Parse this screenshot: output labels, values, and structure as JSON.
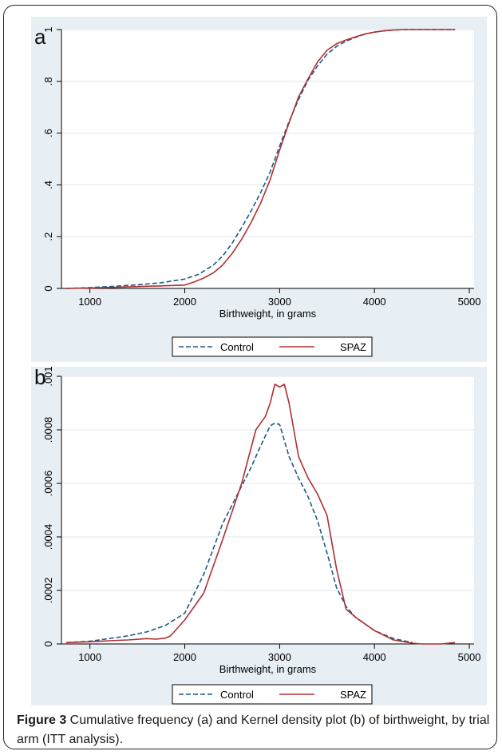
{
  "figure": {
    "caption_label": "Figure 3",
    "caption_text": " Cumulative frequency (a) and Kernel density plot (b) of birthweight, by trial arm (ITT analysis)."
  },
  "colors": {
    "control": "#1f5a87",
    "spaz": "#b03030",
    "panel_bg": "#e8eff4",
    "plot_bg": "#ffffff"
  },
  "chart_data": [
    {
      "type": "line",
      "panel_label": "a",
      "title": "",
      "xlabel": "Birthweight, in grams",
      "ylabel": "",
      "xlim": [
        700,
        5050
      ],
      "ylim": [
        0,
        1
      ],
      "xticks": [
        1000,
        2000,
        3000,
        4000,
        5000
      ],
      "xtick_labels": [
        "1000",
        "2000",
        "3000",
        "4000",
        "5000"
      ],
      "yticks": [
        0,
        0.2,
        0.4,
        0.6,
        0.8,
        1
      ],
      "ytick_labels": [
        "0",
        ".2",
        ".4",
        ".6",
        ".8",
        "1"
      ],
      "grid": true,
      "legend_position": "bottom",
      "series": [
        {
          "name": "Control",
          "style": "dashed",
          "x": [
            750,
            1000,
            1250,
            1500,
            1750,
            2000,
            2150,
            2300,
            2400,
            2500,
            2600,
            2700,
            2800,
            2900,
            3000,
            3100,
            3200,
            3300,
            3400,
            3500,
            3600,
            3700,
            3800,
            3900,
            4000,
            4100,
            4200,
            4300,
            4400,
            4500,
            4700,
            4850
          ],
          "y": [
            0.0,
            0.003,
            0.008,
            0.014,
            0.022,
            0.036,
            0.055,
            0.09,
            0.125,
            0.175,
            0.235,
            0.3,
            0.37,
            0.45,
            0.55,
            0.645,
            0.73,
            0.805,
            0.86,
            0.905,
            0.935,
            0.955,
            0.97,
            0.982,
            0.99,
            0.995,
            0.998,
            1.0,
            1.0,
            1.0,
            1.0,
            1.0
          ]
        },
        {
          "name": "SPAZ",
          "style": "solid",
          "x": [
            750,
            1000,
            1250,
            1500,
            1750,
            2000,
            2100,
            2200,
            2300,
            2400,
            2500,
            2600,
            2700,
            2800,
            2900,
            3000,
            3100,
            3200,
            3300,
            3400,
            3500,
            3600,
            3700,
            3800,
            3900,
            4000,
            4100,
            4200,
            4300,
            4500,
            4700,
            4850
          ],
          "y": [
            0.0,
            0.002,
            0.004,
            0.007,
            0.01,
            0.013,
            0.025,
            0.04,
            0.06,
            0.09,
            0.135,
            0.19,
            0.255,
            0.33,
            0.42,
            0.535,
            0.64,
            0.74,
            0.81,
            0.875,
            0.92,
            0.945,
            0.96,
            0.972,
            0.983,
            0.99,
            0.995,
            0.998,
            1.0,
            1.0,
            1.0,
            1.0
          ]
        }
      ]
    },
    {
      "type": "line",
      "panel_label": "b",
      "title": "",
      "xlabel": "Birthweight, in grams",
      "ylabel": "",
      "xlim": [
        700,
        5050
      ],
      "ylim": [
        0,
        0.001
      ],
      "xticks": [
        1000,
        2000,
        3000,
        4000,
        5000
      ],
      "xtick_labels": [
        "1000",
        "2000",
        "3000",
        "4000",
        "5000"
      ],
      "yticks": [
        0,
        0.0002,
        0.0004,
        0.0006,
        0.0008,
        0.001
      ],
      "ytick_labels": [
        "0",
        ".0002",
        ".0004",
        ".0006",
        ".0008",
        ".001"
      ],
      "grid": true,
      "legend_position": "bottom",
      "series": [
        {
          "name": "Control",
          "style": "dashed",
          "x": [
            750,
            1000,
            1200,
            1400,
            1600,
            1800,
            2000,
            2200,
            2400,
            2600,
            2700,
            2800,
            2900,
            2950,
            3000,
            3100,
            3200,
            3300,
            3400,
            3500,
            3600,
            3700,
            3800,
            4000,
            4200,
            4400
          ],
          "y": [
            5e-06,
            1e-05,
            2e-05,
            3e-05,
            4.5e-05,
            7e-05,
            0.000115,
            0.00026,
            0.00045,
            0.00059,
            0.00066,
            0.00074,
            0.000815,
            0.000825,
            0.00082,
            0.0007,
            0.00062,
            0.00055,
            0.00046,
            0.00034,
            0.00021,
            0.00014,
            0.0001,
            5e-05,
            2e-05,
            5e-06
          ]
        },
        {
          "name": "SPAZ",
          "style": "solid",
          "x": [
            750,
            1000,
            1200,
            1400,
            1600,
            1700,
            1800,
            1850,
            2000,
            2200,
            2400,
            2600,
            2750,
            2850,
            2900,
            2950,
            3000,
            3050,
            3100,
            3200,
            3300,
            3400,
            3500,
            3600,
            3700,
            3800,
            4000,
            4200,
            4400,
            4500,
            4700,
            4850
          ],
          "y": [
            5e-06,
            8e-06,
            1.2e-05,
            1.5e-05,
            2e-05,
            1.8e-05,
            2.2e-05,
            3e-05,
            9e-05,
            0.00019,
            0.00039,
            0.0006,
            0.0008,
            0.00085,
            0.0009,
            0.00097,
            0.00096,
            0.00097,
            0.0009,
            0.0007,
            0.00062,
            0.00056,
            0.00048,
            0.00028,
            0.00013,
            0.0001,
            5e-05,
            1.5e-05,
            3e-06,
            0.0,
            0.0,
            5e-06
          ]
        }
      ]
    }
  ]
}
